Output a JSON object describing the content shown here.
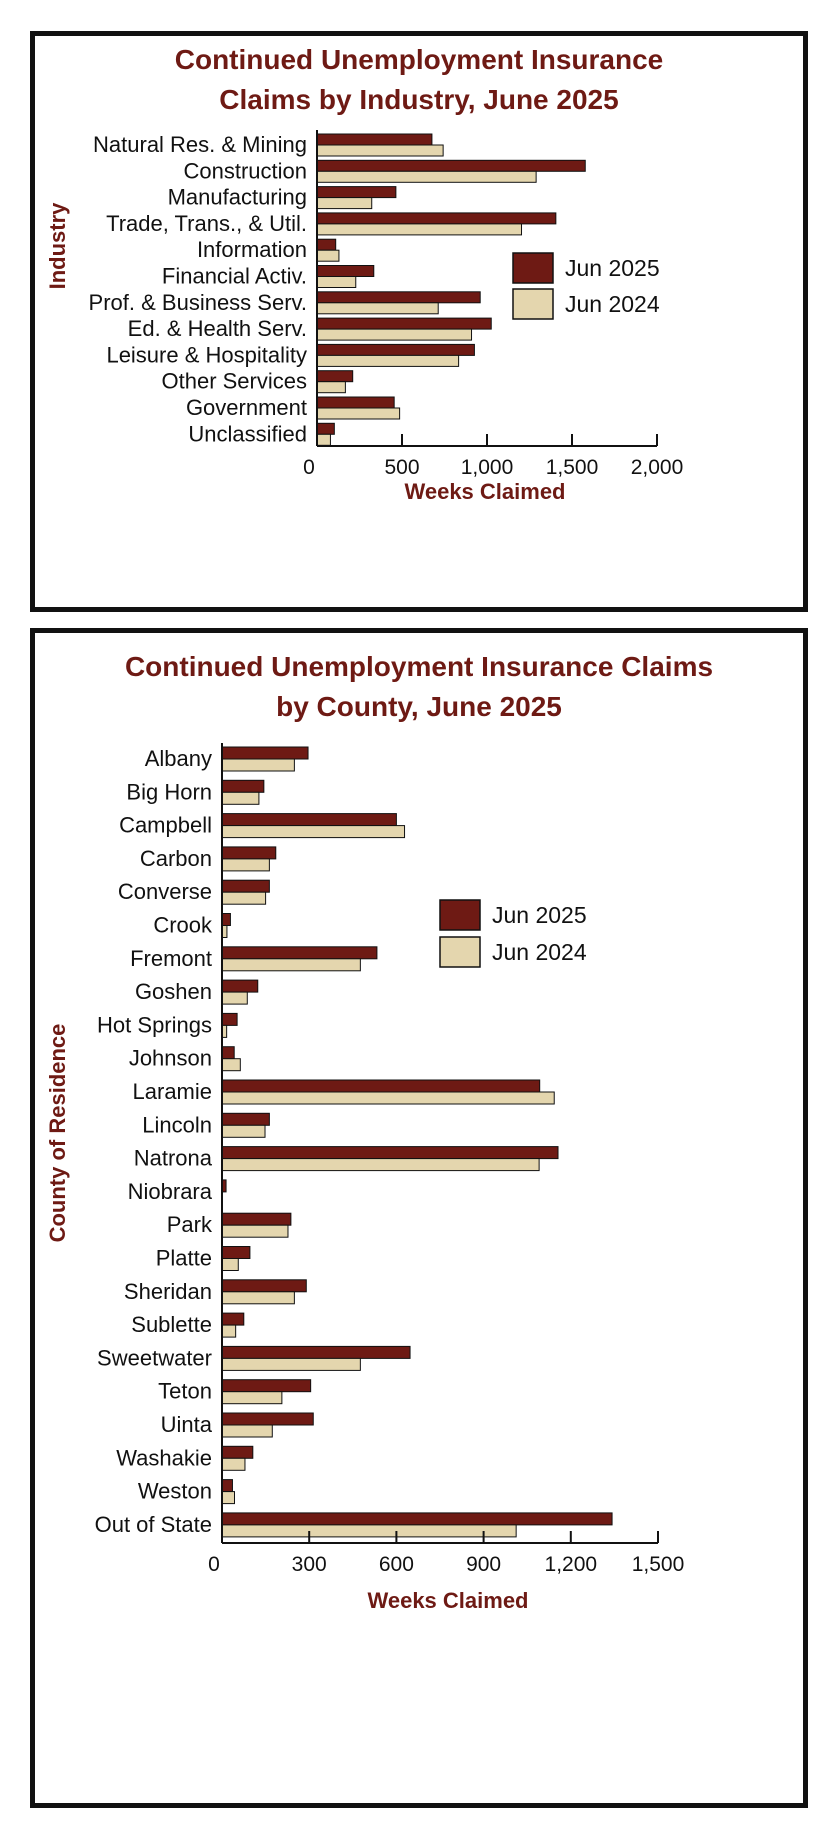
{
  "chart_data": [
    {
      "type": "bar",
      "orientation": "horizontal",
      "title": [
        "Continued Unemployment Insurance",
        "Claims by Industry, June 2025"
      ],
      "xlabel": "Weeks Claimed",
      "ylabel": "Industry",
      "xlim": [
        0,
        2000
      ],
      "xticks": [
        "0",
        "500",
        "1,000",
        "1,500",
        "2,000"
      ],
      "xtick_values": [
        0,
        500,
        1000,
        1500,
        2000
      ],
      "legend_position": "right",
      "colors": {
        "Jun 2025": "#6e1a14",
        "Jun 2024": "#e4d6ae"
      },
      "categories": [
        "Natural Res. & Mining",
        "Construction",
        "Manufacturing",
        "Trade, Trans., & Util.",
        "Information",
        "Financial Activ.",
        "Prof. & Business Serv.",
        "Ed. & Health Serv.",
        "Leisure & Hospitality",
        "Other Services",
        "Government",
        "Unclassified"
      ],
      "series": [
        {
          "name": "Jun 2025",
          "values": [
            676,
            1578,
            464,
            1405,
            110,
            334,
            960,
            1025,
            926,
            210,
            454,
            102
          ]
        },
        {
          "name": "Jun 2024",
          "values": [
            742,
            1289,
            322,
            1203,
            129,
            228,
            713,
            909,
            833,
            167,
            486,
            79
          ]
        }
      ]
    },
    {
      "type": "bar",
      "orientation": "horizontal",
      "title": [
        "Continued Unemployment Insurance Claims",
        "by County, June 2025"
      ],
      "xlabel": "Weeks Claimed",
      "ylabel": "County of Residence",
      "xlim": [
        0,
        1500
      ],
      "xticks": [
        "0",
        "300",
        "600",
        "900",
        "1,200",
        "1,500"
      ],
      "xtick_values": [
        0,
        300,
        600,
        900,
        1200,
        1500
      ],
      "legend_position": "upper-right",
      "colors": {
        "Jun 2025": "#6e1a14",
        "Jun 2024": "#e4d6ae"
      },
      "categories": [
        "Albany",
        "Big Horn",
        "Campbell",
        "Carbon",
        "Converse",
        "Crook",
        "Fremont",
        "Goshen",
        "Hot Springs",
        "Johnson",
        "Laramie",
        "Lincoln",
        "Natrona",
        "Niobrara",
        "Park",
        "Platte",
        "Sheridan",
        "Sublette",
        "Sweetwater",
        "Teton",
        "Uinta",
        "Washakie",
        "Weston",
        "Out of State"
      ],
      "series": [
        {
          "name": "Jun 2025",
          "values": [
            296,
            144,
            600,
            185,
            163,
            29,
            533,
            123,
            52,
            42,
            1093,
            163,
            1156,
            14,
            237,
            96,
            290,
            75,
            647,
            305,
            314,
            106,
            36,
            1342
          ]
        },
        {
          "name": "Jun 2024",
          "values": [
            249,
            127,
            628,
            163,
            150,
            17,
            476,
            87,
            16,
            63,
            1143,
            148,
            1091,
            0,
            227,
            56,
            249,
            47,
            476,
            206,
            173,
            79,
            43,
            1012
          ]
        }
      ]
    }
  ]
}
